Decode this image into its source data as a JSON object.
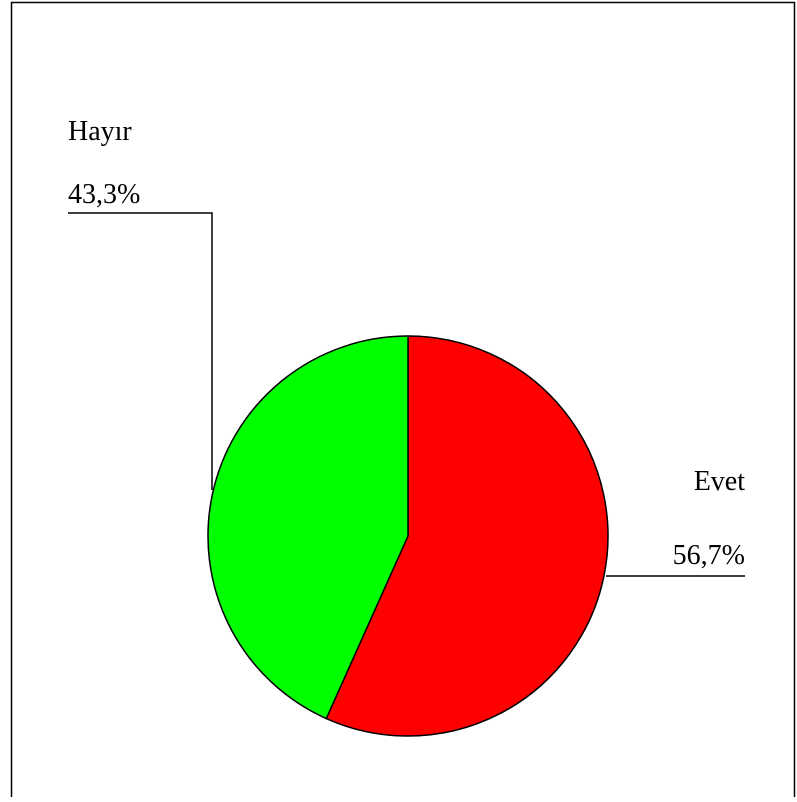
{
  "chart_data": {
    "type": "pie",
    "title": "",
    "categories": [
      "Evet",
      "Hayır"
    ],
    "values": [
      56.7,
      43.3
    ],
    "value_labels": [
      "56,7%",
      "43,3%"
    ],
    "colors": [
      "#ff0000",
      "#00ff00"
    ],
    "legend": "none"
  }
}
